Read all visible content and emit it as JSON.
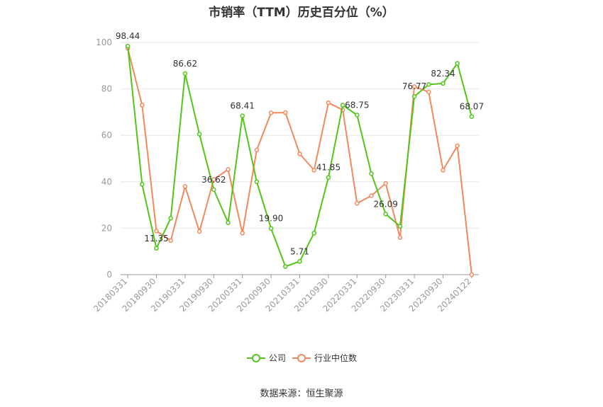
{
  "chart_data": {
    "type": "line",
    "title": "市销率（TTM）历史百分位（%）",
    "source": "数据来源：恒生聚源",
    "xlabel": "",
    "ylabel": "",
    "ylim": [
      0,
      100
    ],
    "yticks": [
      "0",
      "20",
      "40",
      "60",
      "80",
      "100"
    ],
    "x_tick_labels": [
      "20180331",
      "20180930",
      "20190331",
      "20190930",
      "20200331",
      "20200930",
      "20210331",
      "20210930",
      "20220331",
      "20220930",
      "20230331",
      "20230930",
      "20240122"
    ],
    "grid": true,
    "legend_position": "bottom",
    "colors": {
      "company": "#52c41a",
      "industry": "#f08a5d"
    },
    "series": [
      {
        "name": "公司",
        "values": [
          98.44,
          38.9,
          11.35,
          24.3,
          86.62,
          60.5,
          36.62,
          22.4,
          68.41,
          40.0,
          19.9,
          3.5,
          5.71,
          17.9,
          41.85,
          73.0,
          68.75,
          43.5,
          26.09,
          20.8,
          76.77,
          81.9,
          82.34,
          91.0,
          68.07
        ],
        "labels": [
          "98.44",
          "",
          "11.35",
          "",
          "86.62",
          "",
          "36.62",
          "",
          "68.41",
          "",
          "19.90",
          "",
          "5.71",
          "",
          "41.85",
          "",
          "68.75",
          "",
          "26.09",
          "",
          "76.77",
          "",
          "82.34",
          "",
          "68.07"
        ]
      },
      {
        "name": "行业中位数",
        "values": [
          97.5,
          73.0,
          18.8,
          14.7,
          38.0,
          18.6,
          41.0,
          45.3,
          17.9,
          53.7,
          69.7,
          69.8,
          52.0,
          45.0,
          74.0,
          71.0,
          30.7,
          34.0,
          39.3,
          16.0,
          81.0,
          78.7,
          45.0,
          55.5,
          0.0
        ]
      }
    ]
  }
}
